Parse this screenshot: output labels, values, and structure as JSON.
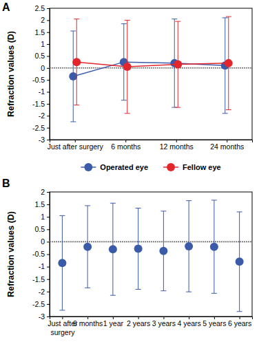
{
  "chart_data": [
    {
      "type": "line",
      "title": "A",
      "y_label": "Refraction values (D)",
      "categories": [
        "Just after surgery",
        "6 months",
        "12 months",
        "24 months"
      ],
      "series": [
        {
          "name": "Operated eye",
          "color": "#3b5ba9",
          "marker": "circle",
          "values": [
            -0.35,
            0.25,
            0.2,
            0.1
          ],
          "errors": [
            1.9,
            1.6,
            1.85,
            2.0
          ]
        },
        {
          "name": "Fellow eye",
          "color": "#e3262b",
          "marker": "circle",
          "values": [
            0.25,
            0.05,
            0.15,
            0.2
          ],
          "errors": [
            1.8,
            1.95,
            1.8,
            1.95
          ]
        }
      ],
      "ylim": [
        -3,
        2.5
      ],
      "yticks": [
        -3,
        -2.5,
        -2,
        -1.5,
        -1,
        -0.5,
        0,
        0.5,
        1,
        1.5,
        2,
        2.5
      ],
      "reference_line": 0,
      "legend": "bottom"
    },
    {
      "type": "scatter",
      "title": "B",
      "y_label": "Refraction values (D)",
      "categories": [
        "Just after surgery",
        "6 months",
        "1 year",
        "2 years",
        "3 years",
        "4 years",
        "5 years",
        "6 years"
      ],
      "series": [
        {
          "color": "#3b5ba9",
          "marker": "circle",
          "values": [
            -0.85,
            -0.2,
            -0.3,
            -0.28,
            -0.37,
            -0.18,
            -0.2,
            -0.8
          ],
          "errors": [
            1.9,
            1.65,
            1.85,
            1.63,
            1.6,
            1.83,
            1.87,
            2.0
          ]
        }
      ],
      "ylim": [
        -3,
        2
      ],
      "yticks": [
        -3,
        -2.5,
        -2,
        -1.5,
        -1,
        -0.5,
        0,
        0.5,
        1,
        1.5,
        2
      ],
      "reference_line": 0
    }
  ]
}
